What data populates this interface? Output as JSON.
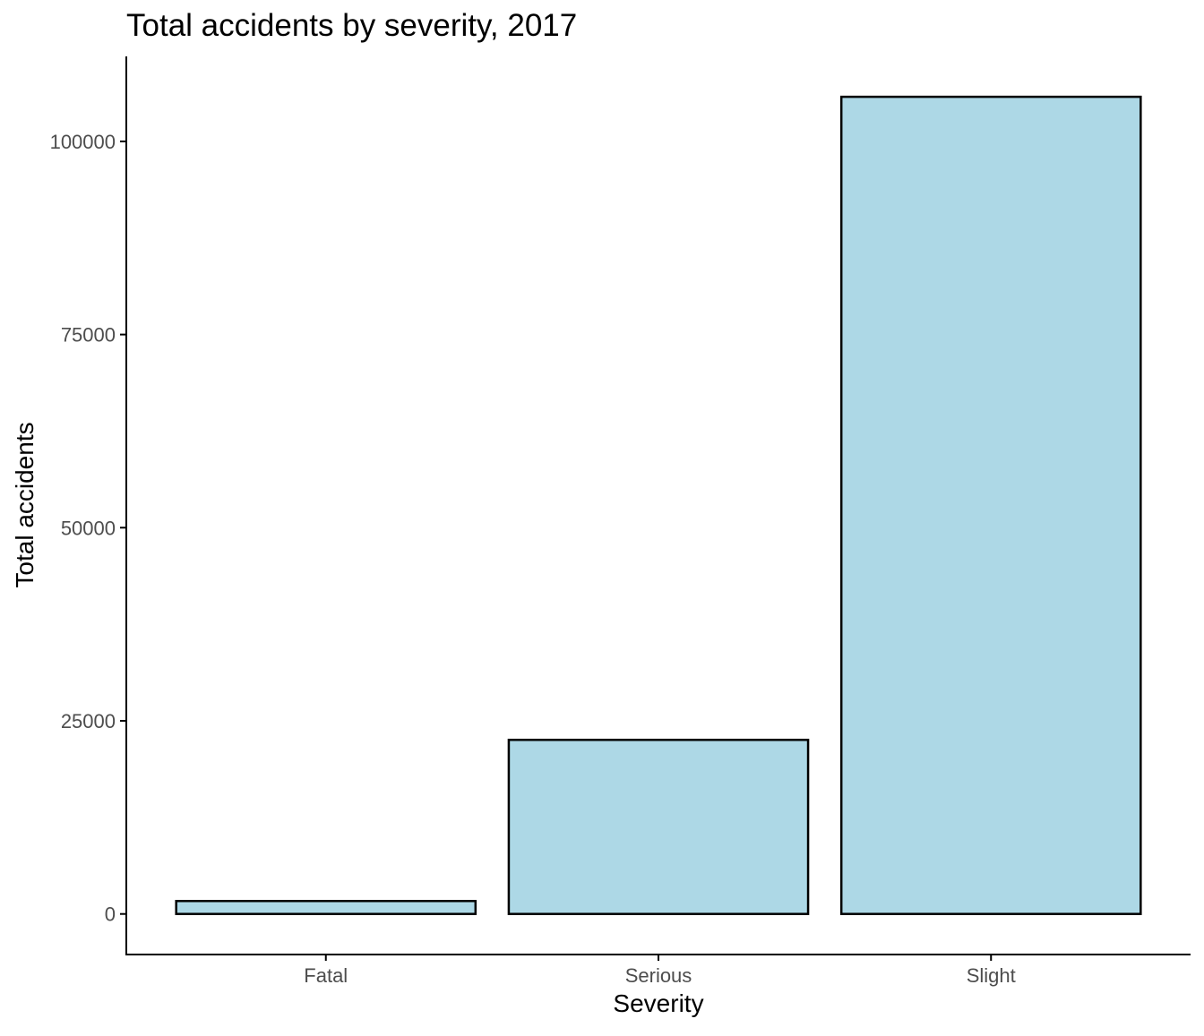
{
  "chart_data": {
    "type": "bar",
    "title": "Total accidents by severity, 2017",
    "xlabel": "Severity",
    "ylabel": "Total accidents",
    "categories": [
      "Fatal",
      "Serious",
      "Slight"
    ],
    "values": [
      1676,
      22534,
      105772
    ],
    "ylim": [
      -5250,
      111000
    ],
    "yticks": [
      0,
      25000,
      50000,
      75000,
      100000
    ],
    "ytick_labels": [
      "0",
      "25000",
      "50000",
      "75000",
      "100000"
    ],
    "grid": false,
    "legend": "none",
    "colors": {
      "bar_fill": "#add8e6",
      "bar_outline": "#000000",
      "axis": "#000000",
      "tick_label": "#4d4d4d"
    }
  }
}
